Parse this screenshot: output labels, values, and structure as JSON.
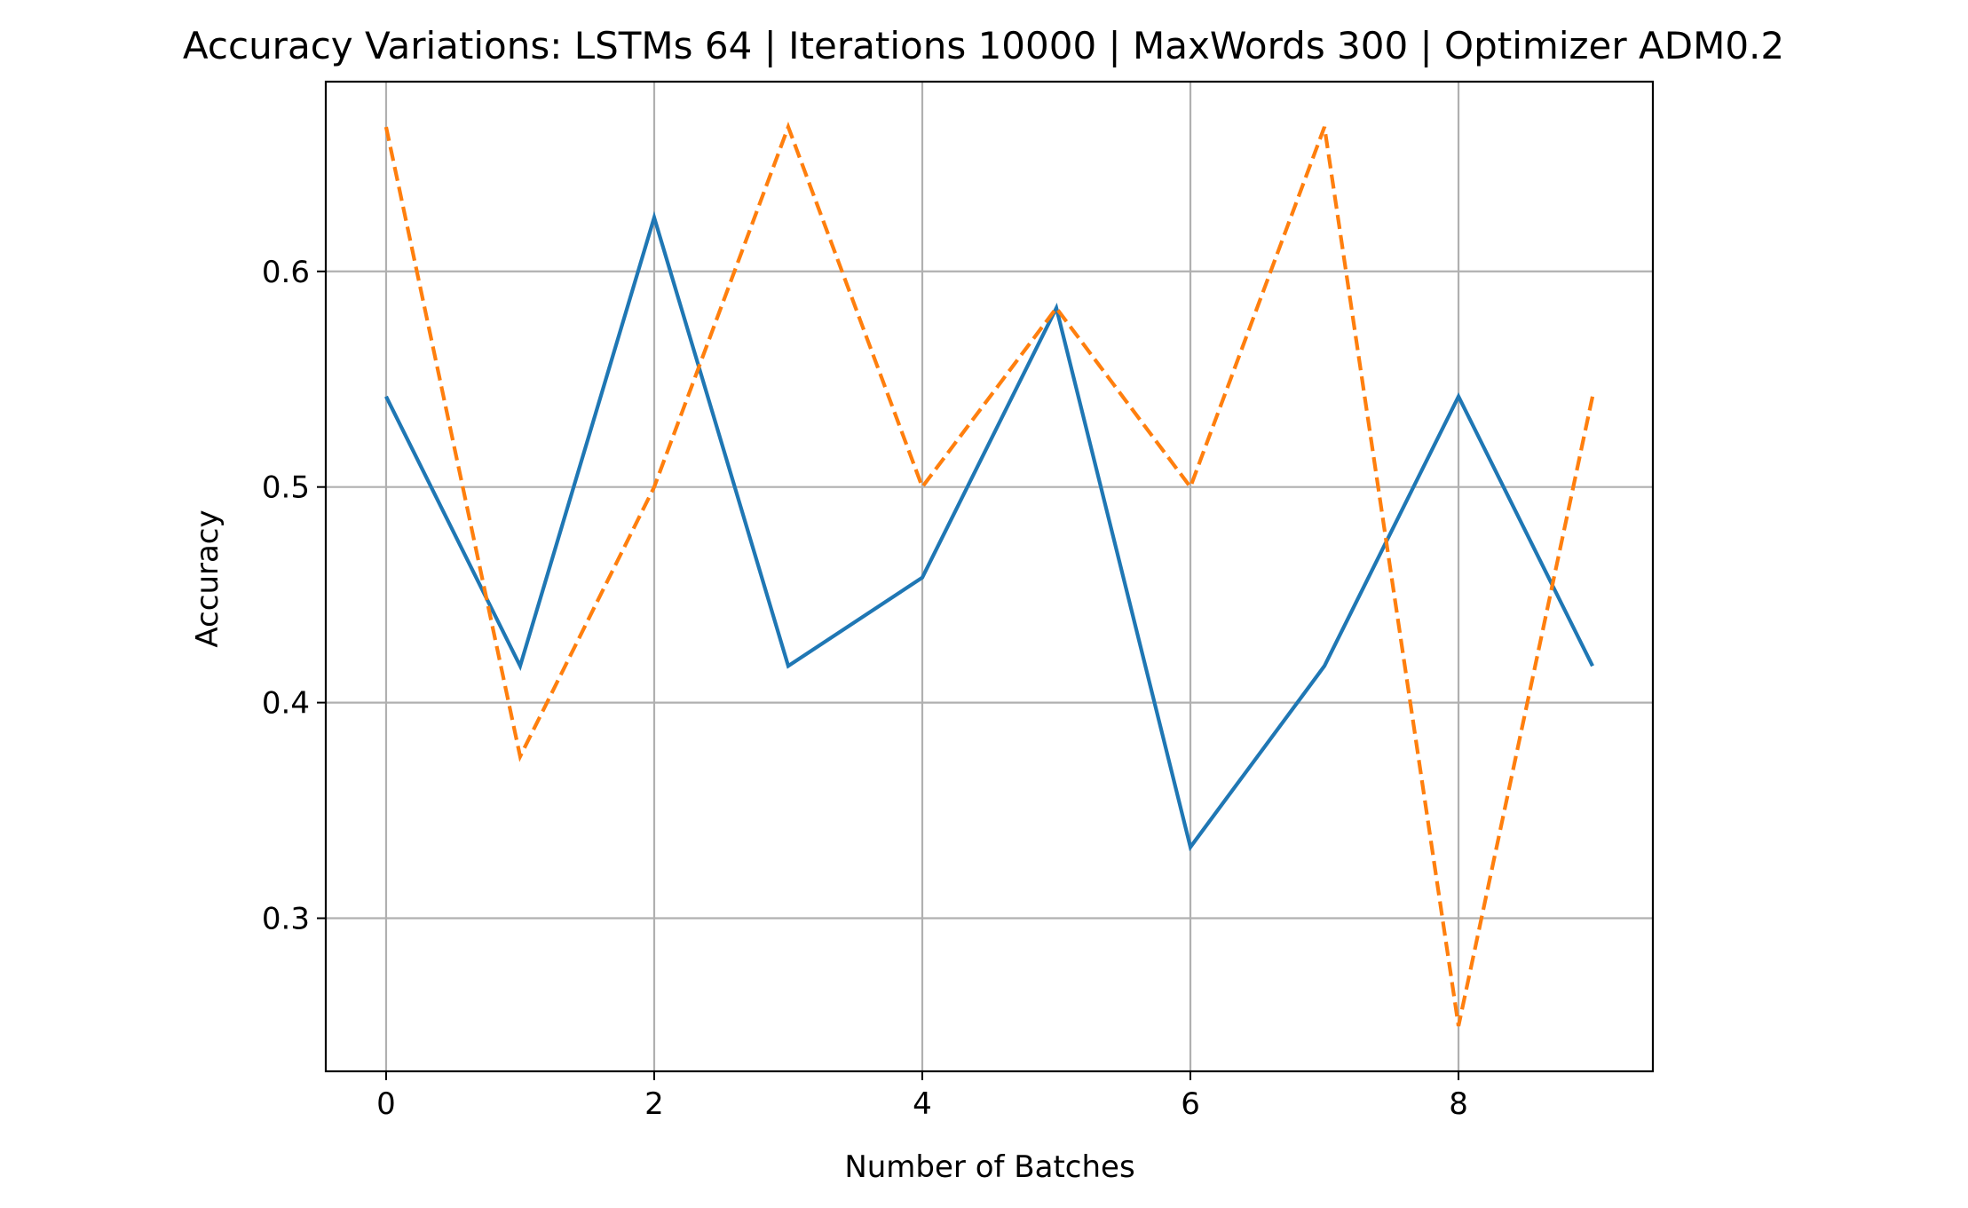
{
  "chart_data": {
    "type": "line",
    "title": "Accuracy Variations: LSTMs 64 | Iterations 10000 | MaxWords 300 | Optimizer ADM0.2",
    "xlabel": "Number of Batches",
    "ylabel": "Accuracy",
    "x": [
      0,
      1,
      2,
      3,
      4,
      5,
      6,
      7,
      8,
      9
    ],
    "xlim": [
      -0.45,
      9.45
    ],
    "ylim": [
      0.229,
      0.688
    ],
    "xticks": [
      0,
      2,
      4,
      6,
      8
    ],
    "xtick_labels": [
      "0",
      "2",
      "4",
      "6",
      "8"
    ],
    "yticks": [
      0.3,
      0.4,
      0.5,
      0.6
    ],
    "ytick_labels": [
      "0.3",
      "0.4",
      "0.5",
      "0.6"
    ],
    "grid": true,
    "legend": "none",
    "series": [
      {
        "style": "solid",
        "color": "#1f77b4",
        "values": [
          0.542,
          0.417,
          0.625,
          0.417,
          0.458,
          0.583,
          0.333,
          0.417,
          0.542,
          0.417
        ]
      },
      {
        "style": "dashed",
        "color": "#ff7f0e",
        "values": [
          0.667,
          0.375,
          0.5,
          0.667,
          0.5,
          0.583,
          0.5,
          0.667,
          0.25,
          0.542
        ]
      }
    ]
  }
}
